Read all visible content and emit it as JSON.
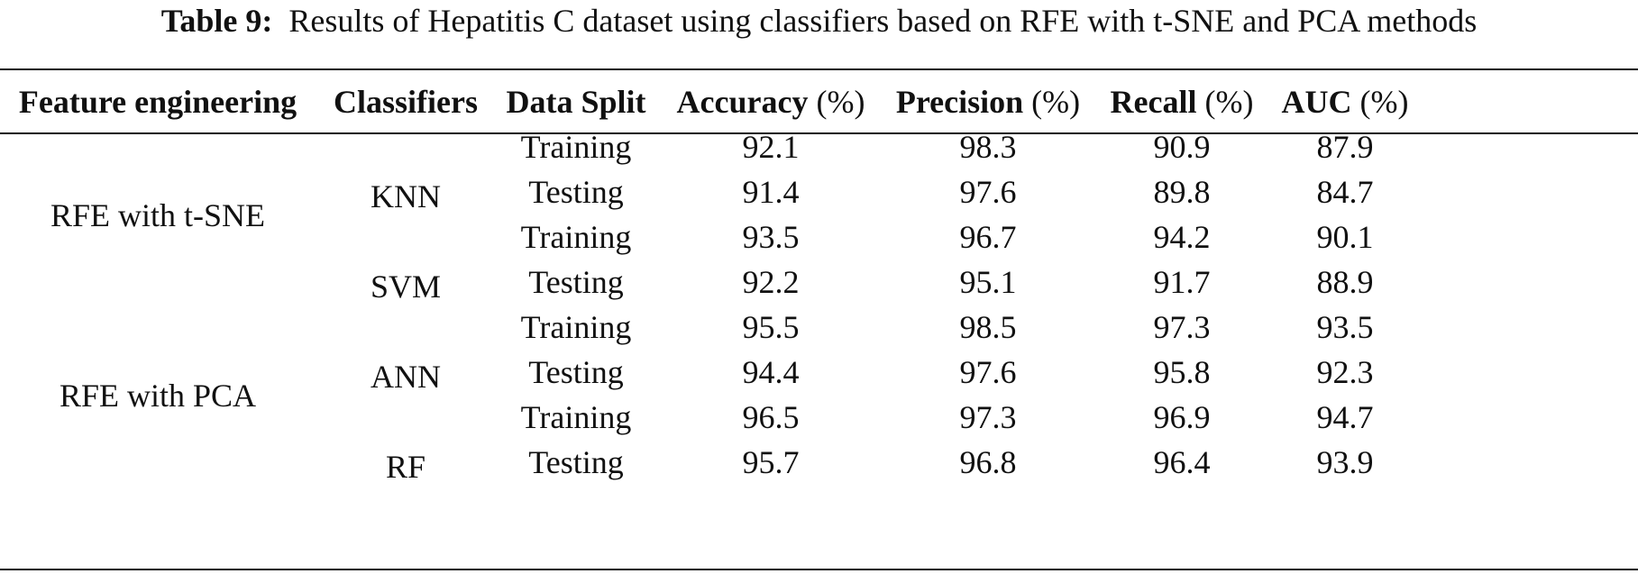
{
  "caption": {
    "label": "Table 9:",
    "text": "Results of Hepatitis C dataset using classifiers based on RFE with t-SNE and PCA methods"
  },
  "headers": {
    "feature_engineering": "Feature engineering",
    "classifiers": "Classifiers",
    "data_split": "Data Split",
    "accuracy": "Accuracy",
    "precision": "Precision",
    "recall": "Recall",
    "auc": "AUC",
    "unit": "(%)"
  },
  "feature_groups": [
    "RFE with t-SNE",
    "RFE with PCA"
  ],
  "classifiers": [
    "KNN",
    "SVM",
    "ANN",
    "RF"
  ],
  "rows": [
    {
      "split": "Training",
      "accuracy": "92.1",
      "precision": "98.3",
      "recall": "90.9",
      "auc": "87.9"
    },
    {
      "split": "Testing",
      "accuracy": "91.4",
      "precision": "97.6",
      "recall": "89.8",
      "auc": "84.7"
    },
    {
      "split": "Training",
      "accuracy": "93.5",
      "precision": "96.7",
      "recall": "94.2",
      "auc": "90.1"
    },
    {
      "split": "Testing",
      "accuracy": "92.2",
      "precision": "95.1",
      "recall": "91.7",
      "auc": "88.9"
    },
    {
      "split": "Training",
      "accuracy": "95.5",
      "precision": "98.5",
      "recall": "97.3",
      "auc": "93.5"
    },
    {
      "split": "Testing",
      "accuracy": "94.4",
      "precision": "97.6",
      "recall": "95.8",
      "auc": "92.3"
    },
    {
      "split": "Training",
      "accuracy": "96.5",
      "precision": "97.3",
      "recall": "96.9",
      "auc": "94.7"
    },
    {
      "split": "Testing",
      "accuracy": "95.7",
      "precision": "96.8",
      "recall": "96.4",
      "auc": "93.9"
    }
  ]
}
